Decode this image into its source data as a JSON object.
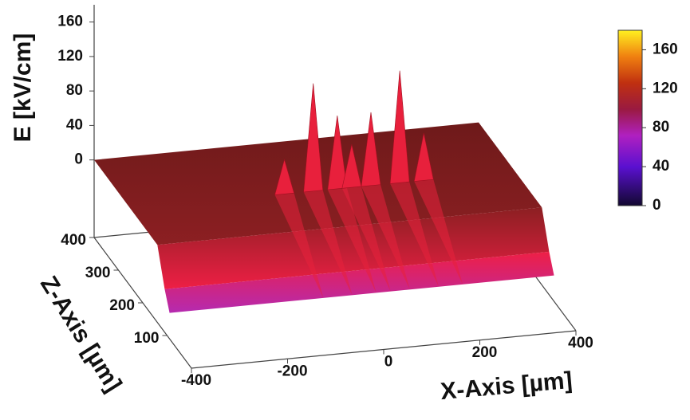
{
  "chart_data": {
    "type": "surface3d",
    "elabel": "E [kV/cm]",
    "xlabel": "X-Axis [µm]",
    "depthlabel": "Z-Axis [µm]",
    "xlim": [
      -400,
      400
    ],
    "xticks": [
      -400,
      -200,
      0,
      200,
      400
    ],
    "depthlim": [
      0,
      400
    ],
    "depthticks": [
      100,
      200,
      300,
      400
    ],
    "elim": [
      -90,
      180
    ],
    "eticks": [
      0,
      40,
      80,
      120,
      160
    ],
    "profile": {
      "depth": [
        400,
        140,
        110,
        90
      ],
      "values": [
        0,
        0,
        -40,
        -60
      ],
      "colors": [
        "#6e1a1a",
        "#8c1f22",
        "#ee1f45",
        "#b52ab0"
      ]
    },
    "peaks": {
      "x": [
        -80,
        -20,
        30,
        60,
        100,
        160,
        210
      ],
      "depth": [
        250,
        250,
        250,
        250,
        250,
        250,
        250
      ],
      "values": [
        40,
        125,
        85,
        50,
        85,
        130,
        55
      ],
      "color": "#e8203c"
    },
    "colorbar": {
      "lim": [
        0,
        180
      ],
      "ticks": [
        0,
        40,
        80,
        120,
        160
      ]
    }
  }
}
